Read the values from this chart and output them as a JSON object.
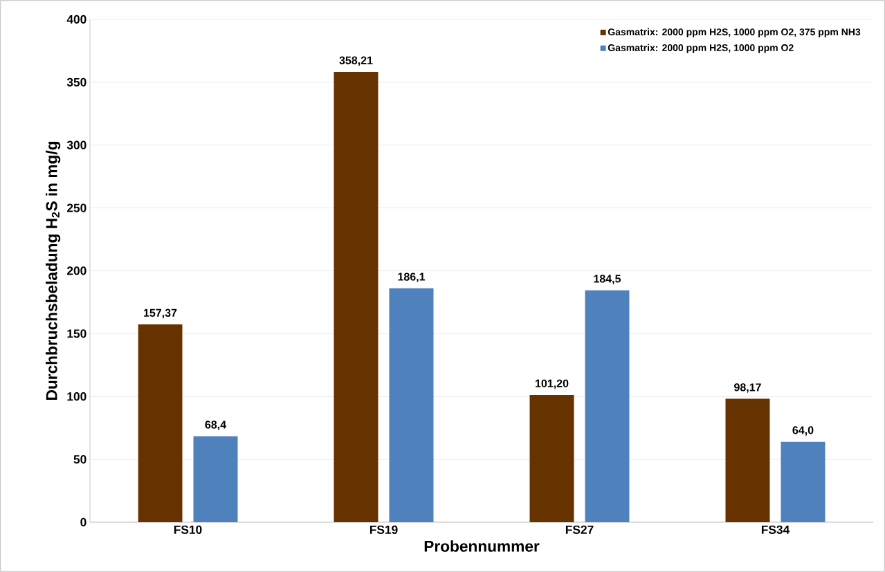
{
  "chart_data": {
    "type": "bar",
    "xlabel": "Probennummer",
    "ylabel": "Durchbruchsbeladung H$_{2}$S in mg/g",
    "categories": [
      "FS10",
      "FS19",
      "FS27",
      "FS34"
    ],
    "series": [
      {
        "name": "Gasmatrix: 2000 ppm H2S, 1000 ppm O2, 375 ppm NH3",
        "color": "#663300",
        "values": [
          157.37,
          358.21,
          101.2,
          98.17
        ],
        "value_labels": [
          "157,37",
          "358,21",
          "101,20",
          "98,17"
        ]
      },
      {
        "name": "Gasmatrix: 2000 ppm H2S, 1000 ppm O2",
        "color": "#4f81bd",
        "values": [
          68.4,
          186.1,
          184.5,
          64.0
        ],
        "value_labels": [
          "68,4",
          "186,1",
          "184,5",
          "64,0"
        ]
      }
    ],
    "ylim": [
      0,
      400
    ],
    "yticks": [
      0,
      50,
      100,
      150,
      200,
      250,
      300,
      350,
      400
    ],
    "grid": "y",
    "legend": "top right"
  }
}
